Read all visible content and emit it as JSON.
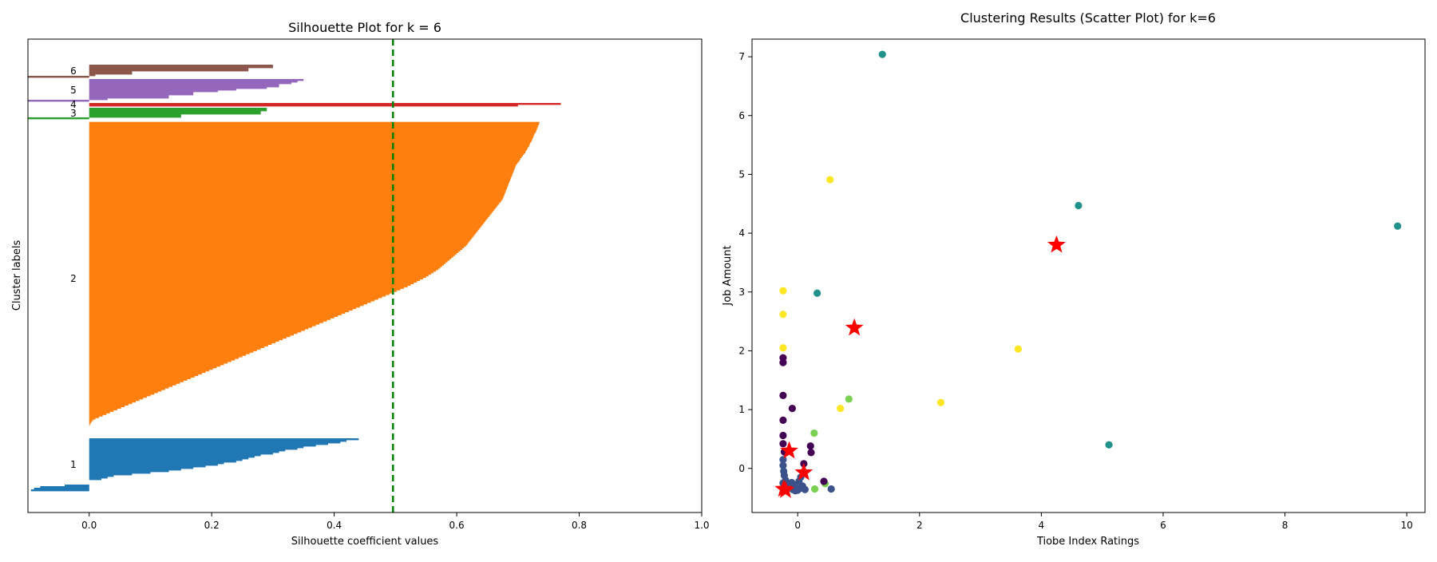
{
  "chart_data": [
    {
      "type": "bar",
      "subtype": "silhouette",
      "title": "Silhouette Plot for k = 6",
      "xlabel": "Silhouette coefficient values",
      "ylabel": "Cluster labels",
      "xlim": [
        -0.1,
        1.0
      ],
      "xticks": [
        "0.0",
        "0.2",
        "0.4",
        "0.6",
        "0.8",
        "1.0"
      ],
      "average_silhouette": 0.496,
      "average_line_color": "#008000",
      "grid": false,
      "clusters": [
        {
          "label": "1",
          "color": "#1f77b4",
          "size": 33,
          "values": [
            0.44,
            0.42,
            0.41,
            0.39,
            0.37,
            0.35,
            0.34,
            0.32,
            0.31,
            0.3,
            0.28,
            0.27,
            0.26,
            0.25,
            0.24,
            0.22,
            0.21,
            0.19,
            0.17,
            0.15,
            0.13,
            0.1,
            0.07,
            0.04,
            0.03,
            0.02,
            0.0,
            0.0,
            0.0,
            -0.04,
            -0.08,
            -0.09,
            -0.095
          ]
        },
        {
          "label": "2",
          "color": "#ff7f0e",
          "size": 198,
          "values": [
            0.735,
            0.734,
            0.733,
            0.732,
            0.731,
            0.73,
            0.729,
            0.727,
            0.726,
            0.725,
            0.724,
            0.723,
            0.722,
            0.72,
            0.719,
            0.718,
            0.716,
            0.715,
            0.713,
            0.712,
            0.71,
            0.708,
            0.706,
            0.704,
            0.703,
            0.701,
            0.699,
            0.697,
            0.696,
            0.695,
            0.694,
            0.693,
            0.692,
            0.691,
            0.69,
            0.689,
            0.688,
            0.687,
            0.686,
            0.685,
            0.684,
            0.683,
            0.682,
            0.681,
            0.68,
            0.679,
            0.678,
            0.677,
            0.676,
            0.675,
            0.673,
            0.671,
            0.669,
            0.667,
            0.665,
            0.663,
            0.661,
            0.659,
            0.657,
            0.655,
            0.653,
            0.651,
            0.649,
            0.647,
            0.645,
            0.643,
            0.641,
            0.639,
            0.637,
            0.635,
            0.633,
            0.631,
            0.629,
            0.627,
            0.625,
            0.623,
            0.621,
            0.619,
            0.617,
            0.615,
            0.612,
            0.609,
            0.606,
            0.603,
            0.6,
            0.597,
            0.594,
            0.591,
            0.588,
            0.585,
            0.582,
            0.579,
            0.576,
            0.573,
            0.57,
            0.566,
            0.562,
            0.558,
            0.554,
            0.55,
            0.545,
            0.54,
            0.535,
            0.53,
            0.525,
            0.52,
            0.514,
            0.508,
            0.502,
            0.496,
            0.49,
            0.484,
            0.478,
            0.472,
            0.466,
            0.46,
            0.454,
            0.448,
            0.442,
            0.436,
            0.43,
            0.424,
            0.418,
            0.412,
            0.406,
            0.4,
            0.394,
            0.388,
            0.382,
            0.376,
            0.37,
            0.364,
            0.358,
            0.352,
            0.346,
            0.34,
            0.334,
            0.328,
            0.322,
            0.316,
            0.31,
            0.304,
            0.298,
            0.292,
            0.286,
            0.28,
            0.274,
            0.268,
            0.262,
            0.256,
            0.25,
            0.244,
            0.238,
            0.232,
            0.226,
            0.22,
            0.214,
            0.208,
            0.202,
            0.196,
            0.19,
            0.184,
            0.178,
            0.172,
            0.166,
            0.16,
            0.154,
            0.148,
            0.142,
            0.136,
            0.13,
            0.124,
            0.118,
            0.112,
            0.106,
            0.1,
            0.094,
            0.088,
            0.082,
            0.076,
            0.07,
            0.064,
            0.058,
            0.052,
            0.046,
            0.04,
            0.034,
            0.028,
            0.022,
            0.016,
            0.01,
            0.006,
            0.004,
            0.002,
            0.001,
            0.0,
            0.0,
            0.0,
            0.0,
            0.0,
            0.0,
            0.0,
            0.0
          ]
        },
        {
          "label": "3",
          "color": "#2ca02c",
          "size": 7,
          "values": [
            0.29,
            0.29,
            0.28,
            0.28,
            0.15,
            0.15,
            -0.1
          ]
        },
        {
          "label": "4",
          "color": "#d62728",
          "size": 2,
          "values": [
            0.77,
            0.7
          ]
        },
        {
          "label": "5",
          "color": "#9467bd",
          "size": 14,
          "values": [
            0.35,
            0.34,
            0.33,
            0.31,
            0.31,
            0.29,
            0.24,
            0.21,
            0.17,
            0.17,
            0.13,
            0.13,
            0.03,
            -0.1
          ]
        },
        {
          "label": "6",
          "color": "#8c564b",
          "size": 8,
          "values": [
            0.3,
            0.3,
            0.26,
            0.26,
            0.07,
            0.07,
            0.01,
            -0.1
          ]
        }
      ]
    },
    {
      "type": "scatter",
      "title": "Clustering Results (Scatter Plot) for k=6",
      "xlabel": "Tiobe Index Ratings",
      "ylabel": "Job Amount",
      "xlim": [
        -0.75,
        10.3
      ],
      "ylim": [
        -0.75,
        7.3
      ],
      "xticks": [
        "0",
        "2",
        "4",
        "6",
        "8",
        "10"
      ],
      "yticks": [
        "0",
        "1",
        "2",
        "3",
        "4",
        "5",
        "6",
        "7"
      ],
      "grid": false,
      "cluster_colors": [
        "#440154",
        "#3b528b",
        "#21918c",
        "#5ec962",
        "#7ad151",
        "#fde725"
      ],
      "points": [
        {
          "x": 1.39,
          "y": 7.04,
          "c": 2
        },
        {
          "x": 4.61,
          "y": 4.47,
          "c": 2
        },
        {
          "x": 9.85,
          "y": 4.12,
          "c": 2
        },
        {
          "x": 0.32,
          "y": 2.98,
          "c": 2
        },
        {
          "x": 5.11,
          "y": 0.4,
          "c": 2
        },
        {
          "x": 0.53,
          "y": 4.91,
          "c": 5
        },
        {
          "x": -0.24,
          "y": 3.02,
          "c": 5
        },
        {
          "x": -0.24,
          "y": 2.62,
          "c": 5
        },
        {
          "x": -0.24,
          "y": 2.05,
          "c": 5
        },
        {
          "x": 3.62,
          "y": 2.03,
          "c": 5
        },
        {
          "x": 2.35,
          "y": 1.12,
          "c": 5
        },
        {
          "x": 0.7,
          "y": 1.02,
          "c": 5
        },
        {
          "x": 0.84,
          "y": 1.18,
          "c": 4
        },
        {
          "x": 0.27,
          "y": 0.6,
          "c": 4
        },
        {
          "x": 0.28,
          "y": -0.35,
          "c": 4
        },
        {
          "x": 0.45,
          "y": -0.26,
          "c": 4
        },
        {
          "x": -0.24,
          "y": 1.88,
          "c": 0
        },
        {
          "x": -0.24,
          "y": 1.8,
          "c": 0
        },
        {
          "x": -0.24,
          "y": 1.24,
          "c": 0
        },
        {
          "x": -0.09,
          "y": 1.02,
          "c": 0
        },
        {
          "x": -0.24,
          "y": 0.82,
          "c": 0
        },
        {
          "x": -0.24,
          "y": 0.56,
          "c": 0
        },
        {
          "x": -0.24,
          "y": 0.42,
          "c": 0
        },
        {
          "x": 0.21,
          "y": 0.38,
          "c": 0
        },
        {
          "x": 0.22,
          "y": 0.27,
          "c": 0
        },
        {
          "x": -0.22,
          "y": 0.28,
          "c": 0
        },
        {
          "x": 0.1,
          "y": 0.08,
          "c": 0
        },
        {
          "x": 0.43,
          "y": -0.22,
          "c": 0
        },
        {
          "x": -0.24,
          "y": 0.15,
          "c": 1
        },
        {
          "x": -0.24,
          "y": 0.05,
          "c": 1
        },
        {
          "x": -0.23,
          "y": -0.05,
          "c": 1
        },
        {
          "x": -0.22,
          "y": -0.12,
          "c": 1
        },
        {
          "x": -0.2,
          "y": -0.2,
          "c": 1
        },
        {
          "x": -0.18,
          "y": -0.26,
          "c": 1
        },
        {
          "x": -0.15,
          "y": -0.3,
          "c": 1
        },
        {
          "x": -0.12,
          "y": -0.33,
          "c": 1
        },
        {
          "x": -0.08,
          "y": -0.36,
          "c": 1
        },
        {
          "x": -0.04,
          "y": -0.38,
          "c": 1
        },
        {
          "x": 0.0,
          "y": -0.37,
          "c": 1
        },
        {
          "x": 0.04,
          "y": -0.34,
          "c": 1
        },
        {
          "x": 0.08,
          "y": -0.3,
          "c": 1
        },
        {
          "x": 0.02,
          "y": -0.22,
          "c": 1
        },
        {
          "x": -0.05,
          "y": -0.28,
          "c": 1
        },
        {
          "x": 0.12,
          "y": -0.36,
          "c": 1
        },
        {
          "x": -0.24,
          "y": -0.34,
          "c": 1
        },
        {
          "x": -0.24,
          "y": -0.25,
          "c": 1
        },
        {
          "x": -0.1,
          "y": -0.24,
          "c": 1
        },
        {
          "x": 0.05,
          "y": -0.15,
          "c": 1
        },
        {
          "x": 0.55,
          "y": -0.35,
          "c": 1
        }
      ],
      "centroids": {
        "color": "#ff0000",
        "marker": "star",
        "points": [
          {
            "x": 4.25,
            "y": 3.8
          },
          {
            "x": 0.93,
            "y": 2.39
          },
          {
            "x": -0.14,
            "y": 0.3
          },
          {
            "x": 0.1,
            "y": -0.07
          },
          {
            "x": -0.23,
            "y": -0.35
          },
          {
            "x": -0.2,
            "y": -0.37
          }
        ]
      }
    }
  ]
}
